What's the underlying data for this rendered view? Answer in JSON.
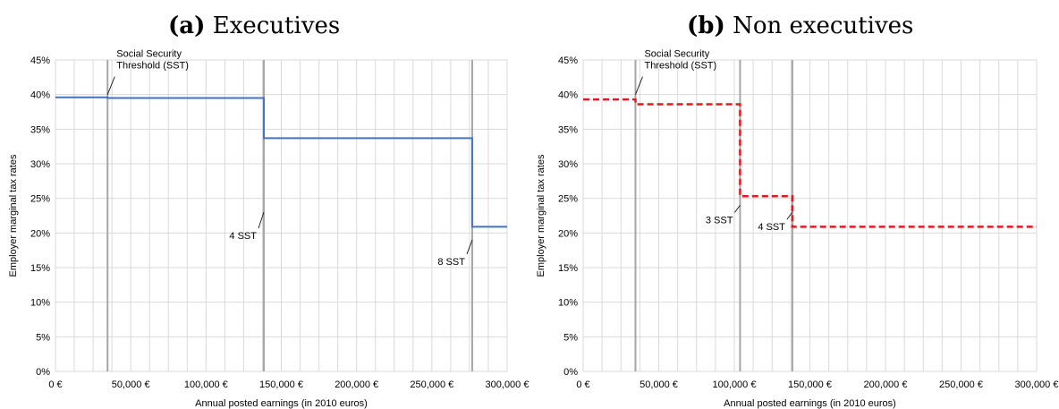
{
  "chart_data": [
    {
      "type": "line",
      "panel_label": "(a)",
      "title": "Executives",
      "xlabel": "Annual posted earnings (in 2010 euros)",
      "ylabel": "Employer marginal tax rates",
      "xlim": [
        0,
        300000
      ],
      "ylim": [
        0,
        45
      ],
      "grid": true,
      "x_ticks": [
        0,
        50000,
        100000,
        150000,
        200000,
        250000,
        300000
      ],
      "x_tick_labels": [
        "0 €",
        "50,000 €",
        "100,000 €",
        "150,000 €",
        "200,000 €",
        "250,000 €",
        "300,000 €"
      ],
      "y_ticks": [
        0,
        5,
        10,
        15,
        20,
        25,
        30,
        35,
        40,
        45
      ],
      "y_tick_labels": [
        "0%",
        "5%",
        "10%",
        "15%",
        "20%",
        "25%",
        "30%",
        "35%",
        "40%",
        "45%"
      ],
      "series": [
        {
          "color": "#4472c4",
          "style": "solid",
          "x": [
            0,
            34600,
            34600,
            138400,
            138400,
            276800,
            276800,
            300000
          ],
          "y": [
            39.6,
            39.6,
            39.5,
            39.5,
            33.7,
            33.7,
            20.9,
            20.9
          ]
        }
      ],
      "vlines": [
        34600,
        138400,
        276800
      ],
      "annotations": [
        {
          "text": [
            "Social Security",
            "Threshold (SST)"
          ],
          "x": 34600,
          "y": 40
        },
        {
          "text": [
            "4 SST"
          ],
          "x": 138400,
          "y": 23
        },
        {
          "text": [
            "8 SST"
          ],
          "x": 276800,
          "y": 19
        }
      ]
    },
    {
      "type": "line",
      "panel_label": "(b)",
      "title": "Non executives",
      "xlabel": "Annual posted earnings (in 2010 euros)",
      "ylabel": "Employer marginal tax rates",
      "xlim": [
        0,
        300000
      ],
      "ylim": [
        0,
        45
      ],
      "grid": true,
      "x_ticks": [
        0,
        50000,
        100000,
        150000,
        200000,
        250000,
        300000
      ],
      "x_tick_labels": [
        "0 €",
        "50,000 €",
        "100,000 €",
        "150,000 €",
        "200,000 €",
        "250,000 €",
        "300,000 €"
      ],
      "y_ticks": [
        0,
        5,
        10,
        15,
        20,
        25,
        30,
        35,
        40,
        45
      ],
      "y_tick_labels": [
        "0%",
        "5%",
        "10%",
        "15%",
        "20%",
        "25%",
        "30%",
        "35%",
        "40%",
        "45%"
      ],
      "series": [
        {
          "color": "#e31a1c",
          "style": "dashed",
          "x": [
            0,
            34600,
            34600,
            103800,
            103800,
            138400,
            138400,
            300000
          ],
          "y": [
            39.3,
            39.3,
            38.6,
            38.6,
            25.3,
            25.3,
            20.9,
            20.9
          ]
        }
      ],
      "vlines": [
        34600,
        103800,
        138400
      ],
      "annotations": [
        {
          "text": [
            "Social Security",
            "Threshold (SST)"
          ],
          "x": 34600,
          "y": 40
        },
        {
          "text": [
            "3 SST"
          ],
          "x": 103800,
          "y": 24
        },
        {
          "text": [
            "4 SST"
          ],
          "x": 138400,
          "y": 23
        }
      ]
    }
  ]
}
